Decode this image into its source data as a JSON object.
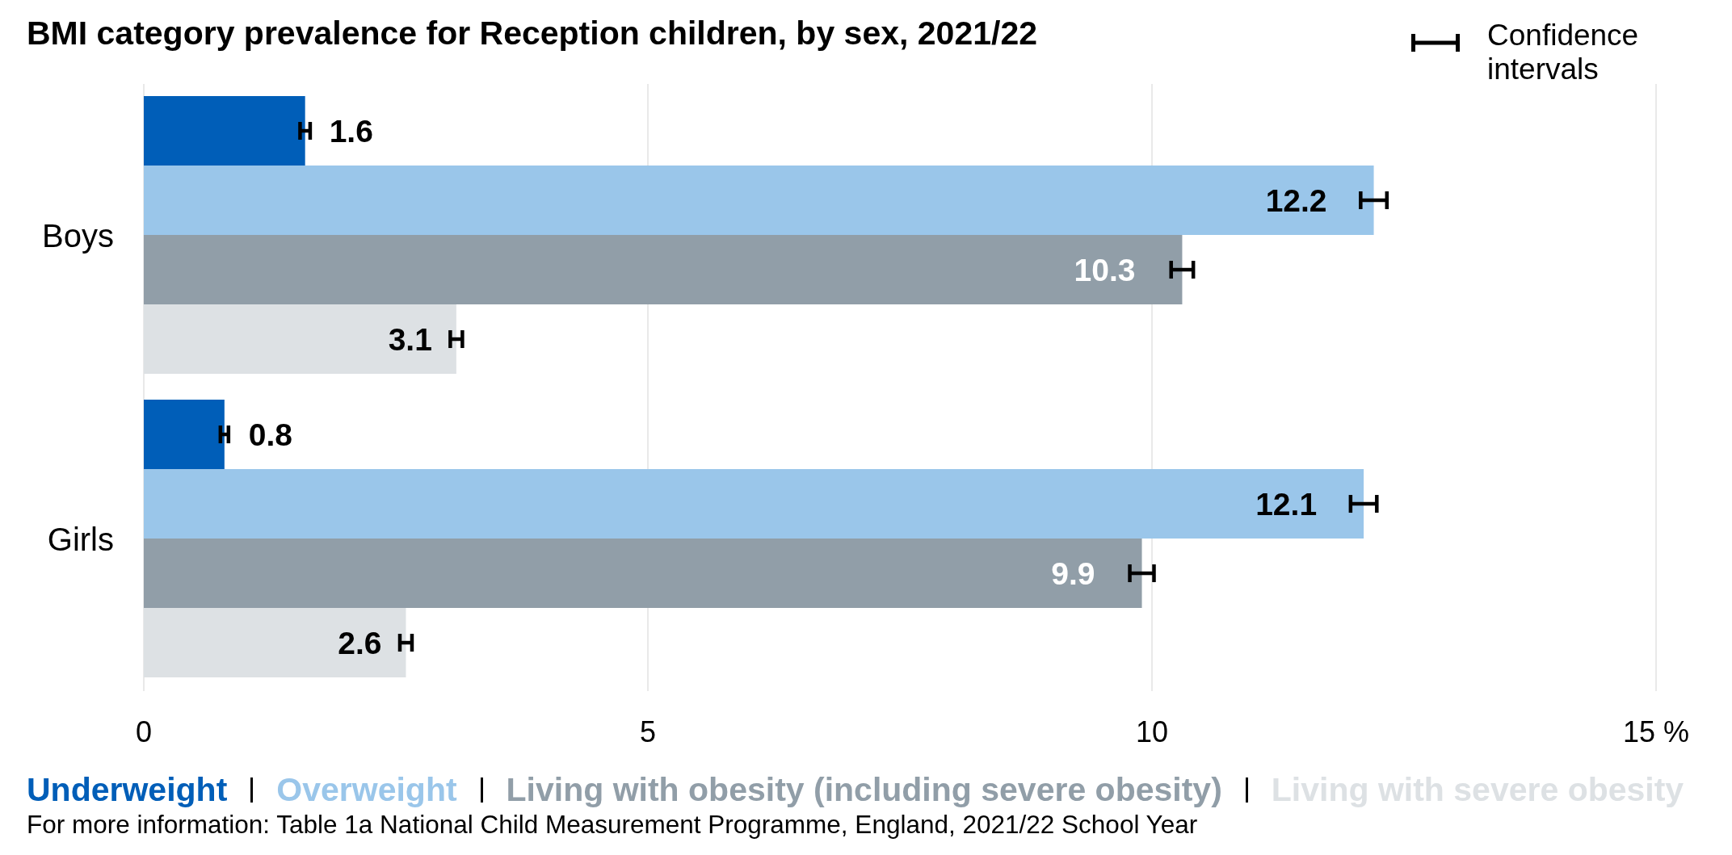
{
  "chart_data": {
    "type": "bar",
    "orientation": "horizontal",
    "title": "BMI category prevalence for Reception children, by sex, 2021/22",
    "categories": [
      "Boys",
      "Girls"
    ],
    "series": [
      {
        "name": "Underweight",
        "color": "#005eb8",
        "values": [
          1.6,
          0.8
        ],
        "errors": [
          0.05,
          0.04
        ]
      },
      {
        "name": "Overweight",
        "color": "#9ac6ea",
        "values": [
          12.2,
          12.1
        ],
        "errors": [
          0.13,
          0.13
        ]
      },
      {
        "name": "Living with obesity (including severe obesity)",
        "color": "#919ea8",
        "values": [
          10.3,
          9.9
        ],
        "errors": [
          0.11,
          0.12
        ]
      },
      {
        "name": "Living with severe obesity",
        "color": "#dde1e4",
        "values": [
          3.1,
          2.6
        ],
        "errors": [
          0.06,
          0.06
        ]
      }
    ],
    "xlim": [
      0,
      15
    ],
    "xticks": [
      0,
      5,
      10,
      {
        "value": 15,
        "label": "15 %"
      }
    ],
    "grid": "x",
    "legend": "bottom",
    "data_labels": true,
    "annotations": [
      "Confidence intervals",
      "For more information: Table 1a National Child Measurement Programme, England, 2021/22 School Year"
    ]
  }
}
